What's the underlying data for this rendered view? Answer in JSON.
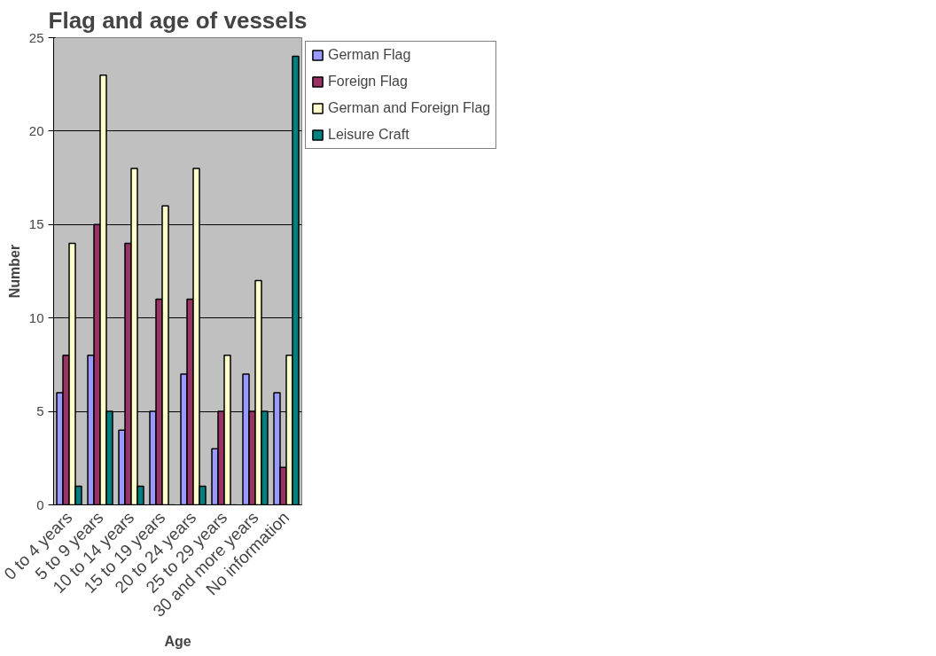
{
  "chart_data": {
    "type": "bar",
    "title": "Flag and age of vessels",
    "xlabel": "Age",
    "ylabel": "Number",
    "categories": [
      "0 to 4 years",
      "5 to 9 years",
      "10 to 14 years",
      "15 to 19 years",
      "20 to 24 years",
      "25 to 29 years",
      "30 and more years",
      "No information"
    ],
    "series": [
      {
        "name": "German Flag",
        "color": "#9999ff",
        "values": [
          6,
          8,
          4,
          5,
          7,
          3,
          7,
          6
        ]
      },
      {
        "name": "Foreign Flag",
        "color": "#993366",
        "values": [
          8,
          15,
          14,
          11,
          11,
          5,
          5,
          2
        ]
      },
      {
        "name": "German and Foreign Flag",
        "color": "#ffffcc",
        "values": [
          14,
          23,
          18,
          16,
          18,
          8,
          12,
          8
        ]
      },
      {
        "name": "Leisure Craft",
        "color": "#008080",
        "values": [
          1,
          5,
          1,
          0,
          1,
          0,
          5,
          24
        ]
      }
    ],
    "ylim": [
      0,
      25
    ],
    "yticks": [
      0,
      5,
      10,
      15,
      20,
      25
    ],
    "grid": "y",
    "legend": "top right"
  }
}
